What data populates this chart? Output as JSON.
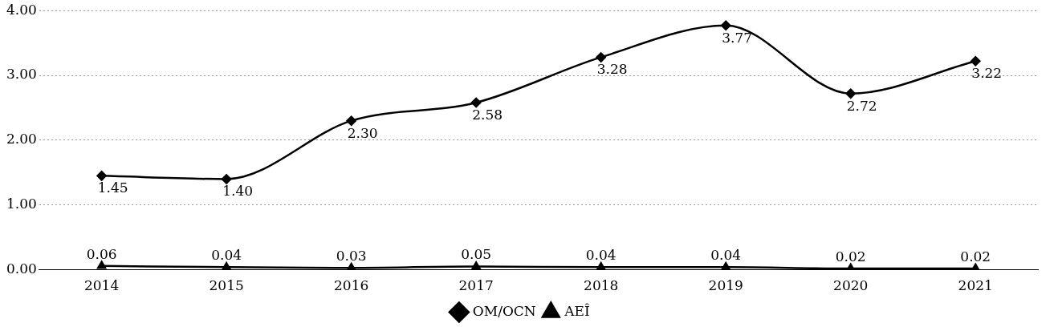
{
  "chart_data": {
    "type": "line",
    "categories": [
      "2014",
      "2015",
      "2016",
      "2017",
      "2018",
      "2019",
      "2020",
      "2021"
    ],
    "series": [
      {
        "name": "OM/OCN",
        "color": "#000000",
        "marker": "diamond",
        "values": [
          1.45,
          1.4,
          2.3,
          2.58,
          3.28,
          3.77,
          2.72,
          3.22
        ],
        "value_labels": [
          "1.45",
          "1.40",
          "2.30",
          "2.58",
          "3.28",
          "3.77",
          "2.72",
          "3.22"
        ]
      },
      {
        "name": "AEÎ",
        "color": "#000000",
        "marker": "triangle",
        "values": [
          0.06,
          0.04,
          0.03,
          0.05,
          0.04,
          0.04,
          0.02,
          0.02
        ],
        "value_labels": [
          "0.06",
          "0.04",
          "0.03",
          "0.05",
          "0.04",
          "0.04",
          "0.02",
          "0.02"
        ]
      }
    ],
    "ylim": [
      0,
      4
    ],
    "yticks": [
      {
        "value": 0,
        "label": "0.00"
      },
      {
        "value": 1,
        "label": "1.00"
      },
      {
        "value": 2,
        "label": "2.00"
      },
      {
        "value": 3,
        "label": "3.00"
      },
      {
        "value": 4,
        "label": "4.00"
      }
    ],
    "grid": "y",
    "legend": "bottom",
    "line_style": "solid"
  }
}
